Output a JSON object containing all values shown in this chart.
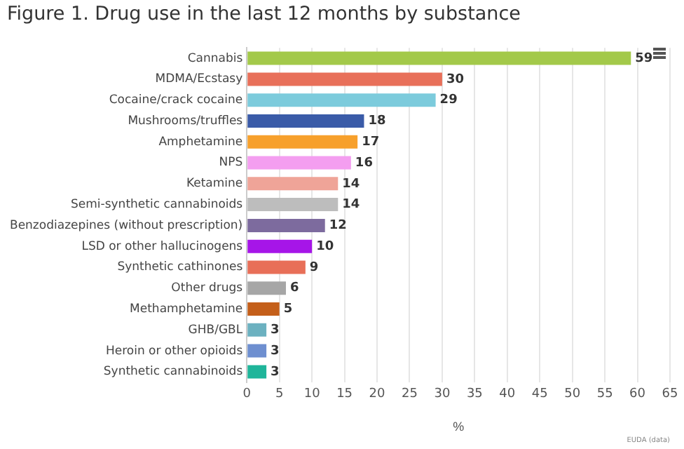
{
  "chart_data": {
    "type": "bar",
    "orientation": "horizontal",
    "title": "Figure 1. Drug use in the last 12 months by substance",
    "xlabel": "%",
    "categories": [
      "Cannabis",
      "MDMA/Ecstasy",
      "Cocaine/crack cocaine",
      "Mushrooms/truffles",
      "Amphetamine",
      "NPS",
      "Ketamine",
      "Semi-synthetic cannabinoids",
      "Benzodiazepines (without prescription)",
      "LSD or other hallucinogens",
      "Synthetic cathinones",
      "Other drugs",
      "Methamphetamine",
      "GHB/GBL",
      "Heroin or other opioids",
      "Synthetic cannabinoids"
    ],
    "values": [
      59,
      30,
      29,
      18,
      17,
      16,
      14,
      14,
      12,
      10,
      9,
      6,
      5,
      3,
      3,
      3
    ],
    "colors": [
      "#a3c94a",
      "#e8705a",
      "#7ccbdc",
      "#3a5ba8",
      "#f7a02c",
      "#f49ef0",
      "#efa498",
      "#bdbdbd",
      "#7d6b9e",
      "#a615e8",
      "#e86f58",
      "#a6a6a6",
      "#c45f1a",
      "#6cb1c0",
      "#6e8fd0",
      "#1fb59a"
    ],
    "xlim": [
      0,
      65
    ],
    "xticks": [
      0,
      5,
      10,
      15,
      20,
      25,
      30,
      35,
      40,
      45,
      50,
      55,
      60,
      65
    ],
    "grid": "x",
    "legend": false,
    "data_labels": true,
    "annotations": [
      "EUDA (data)"
    ]
  }
}
